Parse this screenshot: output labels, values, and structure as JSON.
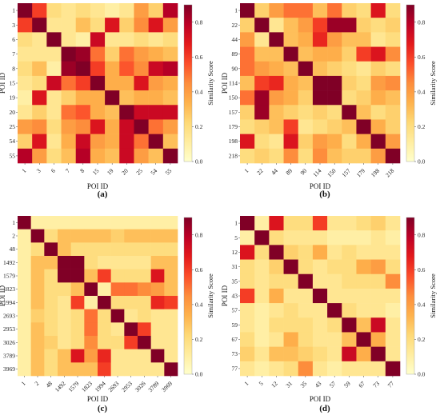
{
  "colormap_stops": [
    "#ffffcc",
    "#ffeda0",
    "#fed976",
    "#feb24c",
    "#fd8d3c",
    "#fc4e2a",
    "#e31a1c",
    "#bd0026",
    "#800026"
  ],
  "chart_data": [
    {
      "type": "heatmap",
      "panel_label": "(a)",
      "xlabel": "POI ID",
      "ylabel": "POI ID",
      "colorbar_label": "Similarity Score",
      "colorbar_ticks": [
        "0.0",
        "0.2",
        "0.4",
        "0.6",
        "0.8"
      ],
      "vmin": 0.0,
      "vmax": 0.9,
      "labels": [
        "1",
        "3",
        "6",
        "7",
        "8",
        "15",
        "19",
        "20",
        "25",
        "54",
        "55"
      ],
      "values": [
        [
          0.9,
          0.6,
          0.2,
          0.15,
          0.2,
          0.15,
          0.1,
          0.15,
          0.4,
          0.25,
          0.8
        ],
        [
          0.6,
          0.9,
          0.15,
          0.15,
          0.3,
          0.2,
          0.7,
          0.25,
          0.45,
          0.7,
          0.4
        ],
        [
          0.2,
          0.15,
          0.9,
          0.15,
          0.1,
          0.75,
          0.15,
          0.15,
          0.2,
          0.15,
          0.2
        ],
        [
          0.15,
          0.15,
          0.15,
          0.9,
          0.85,
          0.5,
          0.25,
          0.5,
          0.4,
          0.35,
          0.3
        ],
        [
          0.2,
          0.3,
          0.1,
          0.85,
          0.9,
          0.6,
          0.35,
          0.55,
          0.45,
          0.75,
          0.8
        ],
        [
          0.15,
          0.2,
          0.75,
          0.5,
          0.6,
          0.9,
          0.35,
          0.35,
          0.7,
          0.4,
          0.35
        ],
        [
          0.1,
          0.7,
          0.15,
          0.25,
          0.35,
          0.35,
          0.9,
          0.3,
          0.35,
          0.35,
          0.3
        ],
        [
          0.15,
          0.25,
          0.15,
          0.5,
          0.55,
          0.35,
          0.3,
          0.9,
          0.75,
          0.75,
          0.75
        ],
        [
          0.4,
          0.45,
          0.2,
          0.4,
          0.45,
          0.7,
          0.35,
          0.75,
          0.9,
          0.5,
          0.4
        ],
        [
          0.25,
          0.7,
          0.15,
          0.35,
          0.75,
          0.4,
          0.35,
          0.75,
          0.5,
          0.9,
          0.3
        ],
        [
          0.8,
          0.4,
          0.2,
          0.3,
          0.8,
          0.35,
          0.3,
          0.75,
          0.4,
          0.3,
          0.9
        ]
      ]
    },
    {
      "type": "heatmap",
      "panel_label": "(b)",
      "xlabel": "POI ID",
      "ylabel": "POI ID",
      "colorbar_label": "Similarity Score",
      "colorbar_ticks": [
        "0.0",
        "0.2",
        "0.4",
        "0.6",
        "0.8"
      ],
      "vmin": 0.0,
      "vmax": 0.9,
      "labels": [
        "1",
        "22",
        "44",
        "89",
        "90",
        "114",
        "150",
        "157",
        "179",
        "198",
        "218"
      ],
      "values": [
        [
          0.9,
          0.25,
          0.4,
          0.5,
          0.5,
          0.3,
          0.5,
          0.25,
          0.2,
          0.7,
          0.2
        ],
        [
          0.25,
          0.9,
          0.15,
          0.3,
          0.4,
          0.6,
          0.85,
          0.85,
          0.25,
          0.2,
          0.25
        ],
        [
          0.4,
          0.15,
          0.9,
          0.3,
          0.35,
          0.65,
          0.4,
          0.3,
          0.3,
          0.15,
          0.2
        ],
        [
          0.5,
          0.3,
          0.3,
          0.9,
          0.3,
          0.35,
          0.35,
          0.25,
          0.6,
          0.7,
          0.45
        ],
        [
          0.5,
          0.4,
          0.35,
          0.3,
          0.9,
          0.3,
          0.25,
          0.2,
          0.15,
          0.25,
          0.2
        ],
        [
          0.3,
          0.6,
          0.65,
          0.35,
          0.3,
          0.9,
          0.9,
          0.25,
          0.2,
          0.4,
          0.45
        ],
        [
          0.5,
          0.85,
          0.4,
          0.35,
          0.25,
          0.9,
          0.9,
          0.2,
          0.25,
          0.35,
          0.3
        ],
        [
          0.25,
          0.85,
          0.3,
          0.25,
          0.2,
          0.25,
          0.2,
          0.9,
          0.3,
          0.2,
          0.25
        ],
        [
          0.2,
          0.25,
          0.3,
          0.6,
          0.15,
          0.2,
          0.25,
          0.3,
          0.9,
          0.35,
          0.25
        ],
        [
          0.7,
          0.2,
          0.15,
          0.7,
          0.25,
          0.4,
          0.35,
          0.2,
          0.35,
          0.9,
          0.4
        ],
        [
          0.2,
          0.25,
          0.2,
          0.45,
          0.2,
          0.45,
          0.3,
          0.25,
          0.25,
          0.4,
          0.9
        ]
      ]
    },
    {
      "type": "heatmap",
      "panel_label": "(c)",
      "xlabel": "POI ID",
      "ylabel": "POI ID",
      "colorbar_label": "Similarity Score",
      "colorbar_ticks": [
        "0.0",
        "0.2",
        "0.4",
        "0.6",
        "0.8"
      ],
      "vmin": 0.0,
      "vmax": 0.9,
      "labels": [
        "1",
        "2",
        "48",
        "1492",
        "1579",
        "1823",
        "1994",
        "2693",
        "2953",
        "3026",
        "3789",
        "3969"
      ],
      "values": [
        [
          0.9,
          0.1,
          0.1,
          0.1,
          0.1,
          0.1,
          0.1,
          0.1,
          0.1,
          0.1,
          0.1,
          0.1
        ],
        [
          0.1,
          0.9,
          0.2,
          0.3,
          0.3,
          0.3,
          0.3,
          0.25,
          0.3,
          0.3,
          0.3,
          0.3
        ],
        [
          0.1,
          0.2,
          0.9,
          0.3,
          0.2,
          0.2,
          0.2,
          0.2,
          0.2,
          0.2,
          0.2,
          0.2
        ],
        [
          0.1,
          0.3,
          0.3,
          0.9,
          0.9,
          0.2,
          0.15,
          0.15,
          0.15,
          0.15,
          0.3,
          0.3
        ],
        [
          0.1,
          0.3,
          0.2,
          0.9,
          0.9,
          0.3,
          0.6,
          0.2,
          0.2,
          0.2,
          0.7,
          0.3
        ],
        [
          0.1,
          0.3,
          0.2,
          0.2,
          0.3,
          0.9,
          0.1,
          0.5,
          0.5,
          0.45,
          0.4,
          0.3
        ],
        [
          0.1,
          0.3,
          0.2,
          0.15,
          0.6,
          0.1,
          0.9,
          0.2,
          0.2,
          0.2,
          0.65,
          0.6
        ],
        [
          0.1,
          0.25,
          0.2,
          0.15,
          0.2,
          0.5,
          0.2,
          0.9,
          0.15,
          0.2,
          0.15,
          0.15
        ],
        [
          0.1,
          0.3,
          0.2,
          0.15,
          0.2,
          0.5,
          0.2,
          0.15,
          0.9,
          0.6,
          0.15,
          0.15
        ],
        [
          0.1,
          0.3,
          0.25,
          0.15,
          0.2,
          0.45,
          0.2,
          0.2,
          0.6,
          0.9,
          0.15,
          0.15
        ],
        [
          0.1,
          0.3,
          0.2,
          0.3,
          0.7,
          0.4,
          0.65,
          0.15,
          0.15,
          0.15,
          0.9,
          0.15
        ],
        [
          0.1,
          0.3,
          0.2,
          0.3,
          0.3,
          0.3,
          0.6,
          0.15,
          0.15,
          0.15,
          0.15,
          0.9
        ]
      ]
    },
    {
      "type": "heatmap",
      "panel_label": "(d)",
      "xlabel": "POI ID",
      "ylabel": "POI ID",
      "colorbar_label": "Similarity Score",
      "colorbar_ticks": [
        "0.0",
        "0.2",
        "0.4",
        "0.6",
        "0.8"
      ],
      "vmin": 0.0,
      "vmax": 0.9,
      "labels": [
        "1",
        "5",
        "12",
        "31",
        "35",
        "43",
        "57",
        "59",
        "67",
        "73",
        "77"
      ],
      "values": [
        [
          0.9,
          0.1,
          0.7,
          0.2,
          0.2,
          0.6,
          0.15,
          0.15,
          0.2,
          0.25,
          0.15
        ],
        [
          0.1,
          0.9,
          0.2,
          0.15,
          0.15,
          0.15,
          0.1,
          0.1,
          0.1,
          0.15,
          0.1
        ],
        [
          0.7,
          0.2,
          0.9,
          0.25,
          0.2,
          0.35,
          0.15,
          0.2,
          0.15,
          0.15,
          0.15
        ],
        [
          0.2,
          0.15,
          0.25,
          0.9,
          0.2,
          0.15,
          0.2,
          0.2,
          0.35,
          0.4,
          0.2
        ],
        [
          0.2,
          0.15,
          0.2,
          0.2,
          0.9,
          0.15,
          0.15,
          0.2,
          0.2,
          0.2,
          0.45
        ],
        [
          0.6,
          0.15,
          0.35,
          0.15,
          0.15,
          0.9,
          0.15,
          0.15,
          0.15,
          0.15,
          0.15
        ],
        [
          0.15,
          0.1,
          0.15,
          0.2,
          0.15,
          0.15,
          0.9,
          0.2,
          0.15,
          0.15,
          0.1
        ],
        [
          0.15,
          0.1,
          0.2,
          0.2,
          0.2,
          0.15,
          0.2,
          0.9,
          0.3,
          0.75,
          0.15
        ],
        [
          0.2,
          0.1,
          0.15,
          0.35,
          0.2,
          0.15,
          0.15,
          0.3,
          0.9,
          0.35,
          0.15
        ],
        [
          0.25,
          0.15,
          0.3,
          0.3,
          0.25,
          0.2,
          0.15,
          0.75,
          0.35,
          0.9,
          0.15
        ],
        [
          0.15,
          0.1,
          0.15,
          0.2,
          0.45,
          0.15,
          0.1,
          0.15,
          0.15,
          0.15,
          0.9
        ]
      ]
    }
  ]
}
